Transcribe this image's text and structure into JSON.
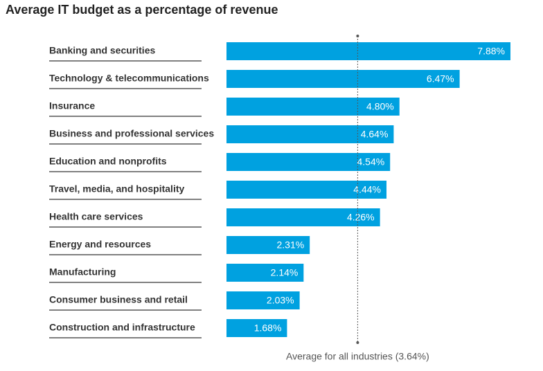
{
  "chart_data": {
    "type": "bar",
    "orientation": "horizontal",
    "title": "Average IT budget as a percentage of revenue",
    "categories": [
      "Banking and securities",
      "Technology & telecommunications",
      "Insurance",
      "Business and professional services",
      "Education and nonprofits",
      "Travel, media, and hospitality",
      "Health care services",
      "Energy and resources",
      "Manufacturing",
      "Consumer business and retail",
      "Construction and infrastructure"
    ],
    "values": [
      7.88,
      6.47,
      4.8,
      4.64,
      4.54,
      4.44,
      4.26,
      2.31,
      2.14,
      2.03,
      1.68
    ],
    "value_labels": [
      "7.88%",
      "6.47%",
      "4.80%",
      "4.64%",
      "4.54%",
      "4.44%",
      "4.26%",
      "2.31%",
      "2.14%",
      "2.03%",
      "1.68%"
    ],
    "color": "#00a1e0",
    "average": {
      "value": 3.64,
      "label": "Average for all industries (3.64%)"
    }
  }
}
